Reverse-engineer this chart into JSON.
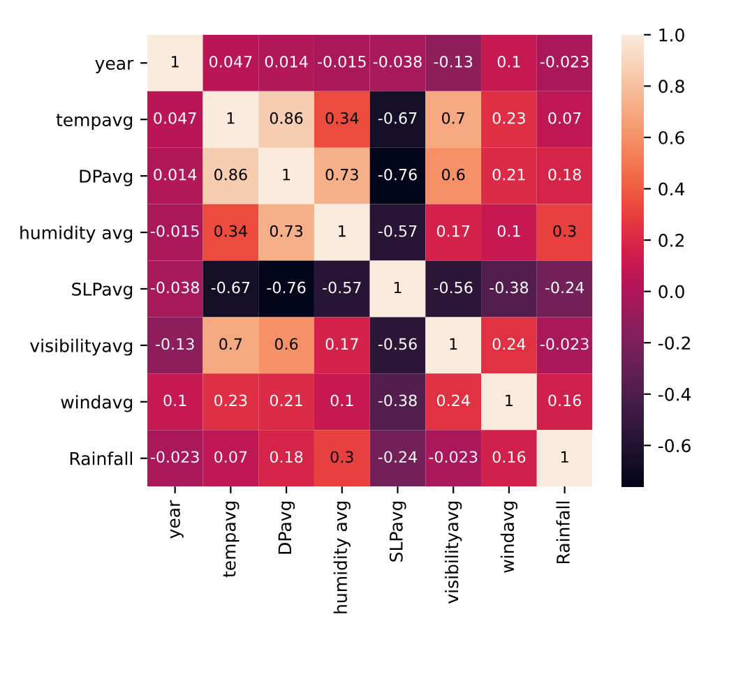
{
  "chart_data": {
    "type": "heatmap",
    "categories": [
      "year",
      "tempavg",
      "DPavg",
      "humidity avg",
      "SLPavg",
      "visibilityavg",
      "windavg",
      "Rainfall"
    ],
    "y_categories": [
      "year",
      "tempavg",
      "DPavg",
      "humidity avg",
      "SLPavg",
      "visibilityavg",
      "windavg",
      "Rainfall"
    ],
    "cells": [
      [
        1,
        0.047,
        0.014,
        -0.015,
        -0.038,
        -0.13,
        0.1,
        -0.023
      ],
      [
        0.047,
        1,
        0.86,
        0.34,
        -0.67,
        0.7,
        0.23,
        0.07
      ],
      [
        0.014,
        0.86,
        1,
        0.73,
        -0.76,
        0.6,
        0.21,
        0.18
      ],
      [
        -0.015,
        0.34,
        0.73,
        1,
        -0.57,
        0.17,
        0.1,
        0.3
      ],
      [
        -0.038,
        -0.67,
        -0.76,
        -0.57,
        1,
        -0.56,
        -0.38,
        -0.24
      ],
      [
        -0.13,
        0.7,
        0.6,
        0.17,
        -0.56,
        1,
        0.24,
        -0.023
      ],
      [
        0.1,
        0.23,
        0.21,
        0.1,
        -0.38,
        0.24,
        1,
        0.16
      ],
      [
        -0.023,
        0.07,
        0.18,
        0.3,
        -0.24,
        -0.023,
        0.16,
        1
      ]
    ],
    "data_labels": true,
    "clim": [
      -0.76,
      1
    ],
    "cticks": [
      -0.6,
      -0.4,
      -0.2,
      {
        "value": 0,
        "label": "0.0"
      },
      0.2,
      0.4,
      0.6,
      0.8,
      {
        "value": 1,
        "label": "1.0"
      }
    ]
  }
}
